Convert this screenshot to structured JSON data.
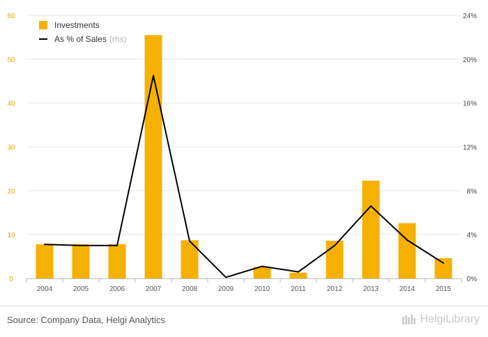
{
  "chart_data": {
    "type": "bar",
    "categories": [
      "2004",
      "2005",
      "2006",
      "2007",
      "2008",
      "2009",
      "2010",
      "2011",
      "2012",
      "2013",
      "2014",
      "2015"
    ],
    "series": [
      {
        "name": "Investments",
        "type": "bar",
        "axis": "left",
        "color": "#f6b100",
        "values": [
          7.8,
          7.8,
          7.8,
          55.5,
          8.7,
          0,
          2.6,
          1.3,
          8.6,
          22.3,
          12.6,
          4.6
        ]
      },
      {
        "name": "As % of Sales",
        "type": "line",
        "axis": "right",
        "color": "#000000",
        "values": [
          3.1,
          3.0,
          3.0,
          18.5,
          3.4,
          0.1,
          1.1,
          0.6,
          3.0,
          6.6,
          3.5,
          1.4
        ]
      }
    ],
    "yleft": {
      "ylim": [
        0,
        60
      ],
      "ticks": [
        0,
        10,
        20,
        30,
        40,
        50,
        60
      ],
      "tick_color": "#f0a500"
    },
    "yright": {
      "ylim": [
        0,
        24
      ],
      "ticks": [
        "0%",
        "4%",
        "8%",
        "12%",
        "16%",
        "20%",
        "24%"
      ]
    },
    "legend": {
      "position": "top-left",
      "rhs_note": "(rhs)"
    },
    "grid": true
  },
  "legend_labels": {
    "investments": "Investments",
    "sales_pct": "As % of Sales",
    "rhs": "(rhs)"
  },
  "footer": {
    "source": "Source: Company Data, Helgi Analytics",
    "brand": "HelgiLibrary"
  }
}
